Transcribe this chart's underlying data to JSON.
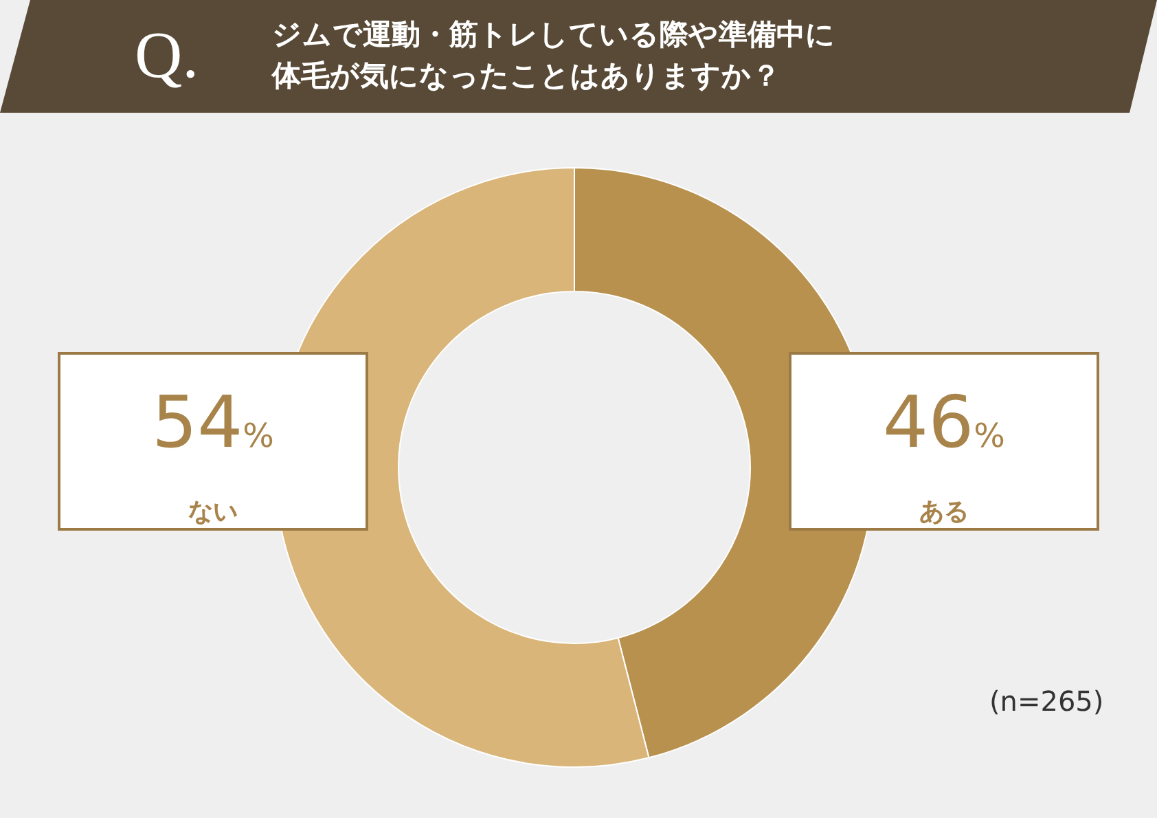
{
  "chart_data": {
    "type": "donut",
    "title": "ジムで運動・筋トレしている際や準備中に体毛が気になったことはありますか？",
    "categories": [
      "ある",
      "ない"
    ],
    "values": [
      46,
      54
    ],
    "colors": [
      "#b8914f",
      "#d9b57a"
    ],
    "value_labels": [
      "46%",
      "54%"
    ],
    "annotations": [
      "Q.",
      "(n=265)"
    ]
  }
}
